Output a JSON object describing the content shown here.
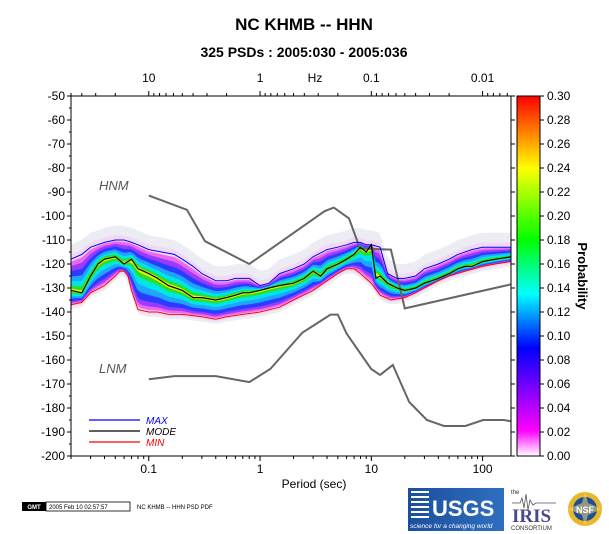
{
  "chart_data": {
    "type": "heatmap",
    "title": "NC KHMB -- HHN",
    "subtitle": "325 PSDs : 2005:030 - 2005:036",
    "xlabel": "Period (sec)",
    "top_axis_unit": "Hz",
    "colorbar_label": "Probability",
    "x_scale": "log",
    "xlim": [
      0.02,
      180
    ],
    "ylim": [
      -200,
      -50
    ],
    "x_ticks": [
      0.1,
      1,
      10,
      100
    ],
    "x_tick_labels": [
      "0.1",
      "1",
      "10",
      "100"
    ],
    "top_ticks": [
      10,
      1,
      0.1,
      0.01
    ],
    "top_tick_labels": [
      "10",
      "1",
      "0.1",
      "0.01"
    ],
    "y_ticks": [
      -50,
      -60,
      -70,
      -80,
      -90,
      -100,
      -110,
      -120,
      -130,
      -140,
      -150,
      -160,
      -170,
      -180,
      -190,
      -200
    ],
    "y_tick_labels": [
      "-50",
      "-60",
      "-70",
      "-80",
      "-90",
      "-100",
      "-110",
      "-120",
      "-130",
      "-140",
      "-150",
      "-160",
      "-170",
      "-180",
      "-190",
      "-200"
    ],
    "colorbar_range": [
      0,
      0.3
    ],
    "colorbar_ticks": [
      0.0,
      0.02,
      0.04,
      0.06,
      0.08,
      0.1,
      0.12,
      0.14,
      0.16,
      0.18,
      0.2,
      0.22,
      0.24,
      0.26,
      0.28,
      0.3
    ],
    "colorbar_tick_labels": [
      "0.00",
      "0.02",
      "0.04",
      "0.06",
      "0.08",
      "0.10",
      "0.12",
      "0.14",
      "0.16",
      "0.18",
      "0.20",
      "0.22",
      "0.24",
      "0.26",
      "0.28",
      "0.30"
    ],
    "colorbar_colors": [
      "#ffffff",
      "#ff00ff",
      "#0000ff",
      "#00ffff",
      "#00ff00",
      "#ffff00",
      "#ff0000"
    ],
    "series": [
      {
        "name": "MAX",
        "color": "#0000ff",
        "x": [
          0.02,
          0.025,
          0.03,
          0.04,
          0.05,
          0.06,
          0.07,
          0.08,
          0.1,
          0.13,
          0.17,
          0.2,
          0.25,
          0.3,
          0.4,
          0.5,
          0.6,
          0.7,
          0.8,
          1,
          1.2,
          1.5,
          2,
          2.5,
          3,
          4,
          5,
          6,
          7,
          8,
          9,
          10,
          12,
          14,
          17,
          20,
          25,
          30,
          40,
          50,
          60,
          80,
          100,
          130,
          180
        ],
        "y": [
          -118,
          -116,
          -113,
          -111,
          -110,
          -110,
          -111,
          -112,
          -114,
          -115,
          -116,
          -118,
          -121,
          -124,
          -127,
          -127,
          -126,
          -126,
          -126,
          -129,
          -128,
          -124,
          -122,
          -120,
          -117,
          -114,
          -113,
          -112,
          -111,
          -111,
          -112,
          -112,
          -113,
          -124,
          -126,
          -126,
          -125,
          -122,
          -120,
          -118,
          -116,
          -114,
          -113,
          -113,
          -113
        ]
      },
      {
        "name": "MODE",
        "color": "#000000",
        "x": [
          0.02,
          0.025,
          0.03,
          0.035,
          0.04,
          0.05,
          0.06,
          0.07,
          0.08,
          0.09,
          0.1,
          0.12,
          0.15,
          0.2,
          0.25,
          0.3,
          0.4,
          0.5,
          0.6,
          0.7,
          0.8,
          1,
          1.2,
          1.5,
          2,
          2.5,
          3,
          3.5,
          4,
          5,
          6,
          7,
          8,
          9,
          10,
          11,
          12,
          14,
          17,
          20,
          25,
          30,
          40,
          50,
          60,
          70,
          80,
          100,
          130,
          180
        ],
        "y": [
          -131,
          -132,
          -125,
          -120,
          -118,
          -117,
          -120,
          -118,
          -122,
          -123,
          -124,
          -126,
          -129,
          -131,
          -134,
          -134,
          -135,
          -134,
          -133,
          -132,
          -132,
          -131,
          -130,
          -129,
          -128,
          -126,
          -123,
          -125,
          -122,
          -120,
          -118,
          -116,
          -113,
          -115,
          -112,
          -126,
          -125,
          -128,
          -130,
          -131,
          -130,
          -128,
          -126,
          -124,
          -122,
          -121,
          -121,
          -119,
          -118,
          -117
        ]
      },
      {
        "name": "MIN",
        "color": "#ff0000",
        "x": [
          0.02,
          0.025,
          0.03,
          0.04,
          0.05,
          0.055,
          0.06,
          0.065,
          0.07,
          0.08,
          0.1,
          0.12,
          0.15,
          0.2,
          0.3,
          0.4,
          0.5,
          0.7,
          1,
          1.5,
          2,
          3,
          4,
          5,
          6,
          7,
          8,
          10,
          12,
          15,
          20,
          25,
          30,
          40,
          50,
          70,
          100,
          130,
          180
        ],
        "y": [
          -137,
          -136,
          -132,
          -129,
          -125,
          -123,
          -123,
          -125,
          -131,
          -139,
          -140,
          -140,
          -141,
          -141,
          -142,
          -143,
          -142,
          -141,
          -140,
          -138,
          -135,
          -131,
          -127,
          -124,
          -122,
          -122,
          -124,
          -128,
          -133,
          -135,
          -134,
          -132,
          -130,
          -127,
          -125,
          -123,
          -121,
          -120,
          -119
        ]
      }
    ],
    "noise_models": [
      {
        "name": "HNM",
        "x": [
          0.1,
          0.22,
          0.32,
          0.8,
          3.8,
          4.6,
          6.3,
          7.9,
          15,
          20,
          200
        ],
        "y": [
          -91.5,
          -97.4,
          -110.5,
          -120,
          -98,
          -96.5,
          -101,
          -113.5,
          -114,
          -138.5,
          -128
        ]
      },
      {
        "name": "LNM",
        "x": [
          0.1,
          0.17,
          0.4,
          0.8,
          1.24,
          2.4,
          4.3,
          5,
          6,
          10,
          12,
          15.6,
          21.9,
          31.6,
          45,
          70,
          101,
          154,
          328
        ],
        "y": [
          -168,
          -166.7,
          -166.7,
          -169.2,
          -163.7,
          -148.6,
          -141.1,
          -141.1,
          -149,
          -163.8,
          -166.2,
          -162.1,
          -177.5,
          -185,
          -187.5,
          -187.5,
          -185,
          -185,
          -187.5
        ]
      }
    ],
    "annotations": [
      "HNM",
      "LNM"
    ],
    "legend": [
      "MAX",
      "MODE",
      "MIN"
    ],
    "legend_position": "bottom-left"
  },
  "footer": {
    "gmt_badge": "GMT",
    "timestamp": "2005 Feb 10 02:57:57",
    "caption": "NC KHMB -- HHN PSD PDF"
  },
  "logos": {
    "usgs_mark": "USGS",
    "usgs_tagline": "science for a changing world",
    "iris_small": "the",
    "iris_mark": "IRIS",
    "iris_sub": "CONSORTIUM",
    "nsf_mark": "NSF"
  }
}
